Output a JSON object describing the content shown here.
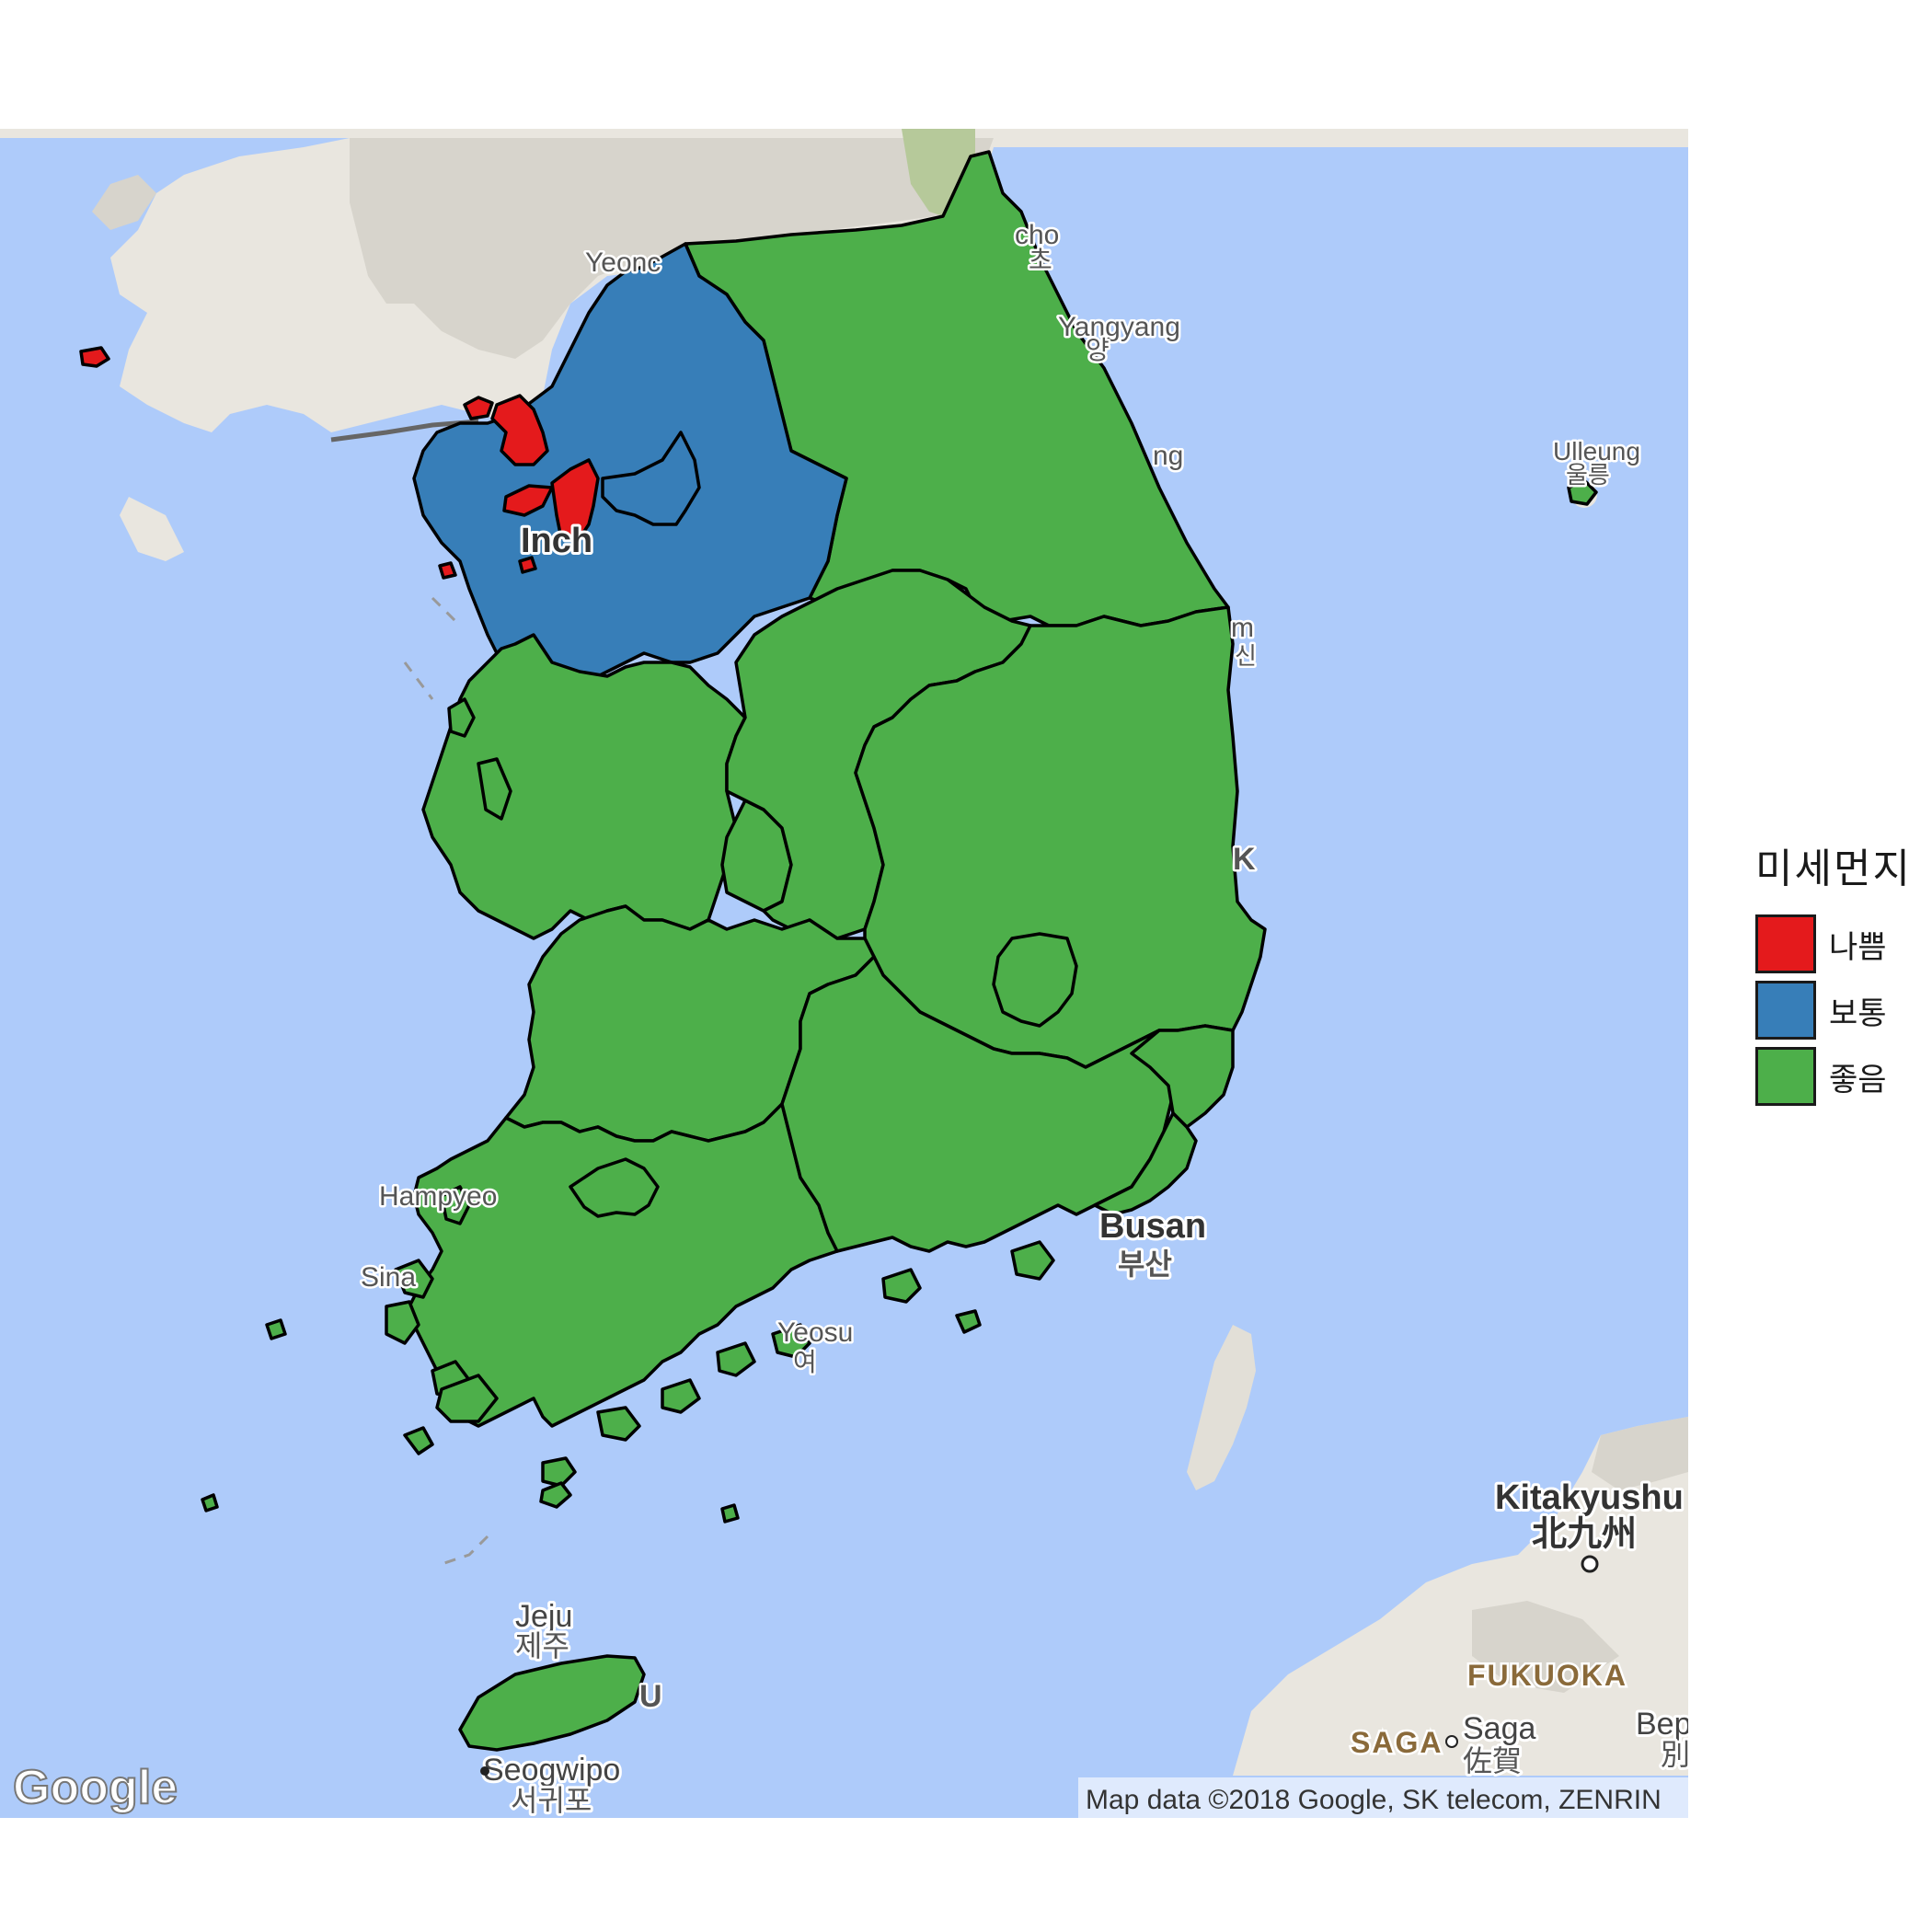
{
  "colors": {
    "bad": "#e41a1c",
    "normal": "#377eb8",
    "good": "#4daf4a",
    "sea": "#aecbfa",
    "land": "#e9e6df",
    "terrain": "#d2cfc8",
    "border": "#000000"
  },
  "legend": {
    "title": "미세먼지",
    "items": [
      {
        "key": "bad",
        "label": "나쁨",
        "color": "#e41a1c"
      },
      {
        "key": "normal",
        "label": "보통",
        "color": "#377eb8"
      },
      {
        "key": "good",
        "label": "좋음",
        "color": "#4daf4a"
      }
    ]
  },
  "regions": [
    {
      "name": "Incheon",
      "status": "bad"
    },
    {
      "name": "Seoul",
      "status": "normal"
    },
    {
      "name": "Gyeonggi",
      "status": "normal"
    },
    {
      "name": "Gangwon",
      "status": "good"
    },
    {
      "name": "Chungnam",
      "status": "good"
    },
    {
      "name": "Chungbuk",
      "status": "good"
    },
    {
      "name": "Gyeongbuk",
      "status": "good"
    },
    {
      "name": "Jeonbuk",
      "status": "good"
    },
    {
      "name": "Jeonnam",
      "status": "good"
    },
    {
      "name": "Gyeongnam",
      "status": "good"
    },
    {
      "name": "Busan",
      "status": "good"
    },
    {
      "name": "Ulsan",
      "status": "good"
    },
    {
      "name": "Daegu",
      "status": "good"
    },
    {
      "name": "Daejeon",
      "status": "good"
    },
    {
      "name": "Gwangju",
      "status": "good"
    },
    {
      "name": "Jeju",
      "status": "good"
    }
  ],
  "basemap_labels": {
    "yeonan": "Yeonc",
    "sokcho": "cho",
    "sokcho_ko": "초",
    "yangyang": "Yangyang",
    "yangyang_ko": "양",
    "gangneung": "ng",
    "ulleung": "Ulleung",
    "ulleung_ko": "울릉",
    "incheon": "Inch",
    "samcheok": "m",
    "samcheok_ko": "신",
    "pohang": "K",
    "hampyeong": "Hampyeo",
    "sinan": "Sina",
    "busan": "Busan",
    "busan_ko": "부산",
    "yeosu": "Yeosu",
    "yeosu_ko": "여",
    "jeju": "Jeju",
    "jeju_ko": "제주",
    "jeju_u": "U",
    "seogwipo": "Seogwipo",
    "seogwipo_ko": "서귀포",
    "kitakyushu": "Kitakyushu",
    "kitakyushu_ko": "北九州",
    "fukuoka": "FUKUOKA",
    "saga_pref": "SAGA",
    "saga": "Saga",
    "saga_ko": "佐賀",
    "beppu": "Bep",
    "beppu_ko": "別"
  },
  "attribution": "Map data ©2018 Google, SK telecom, ZENRIN",
  "logo": "Google"
}
